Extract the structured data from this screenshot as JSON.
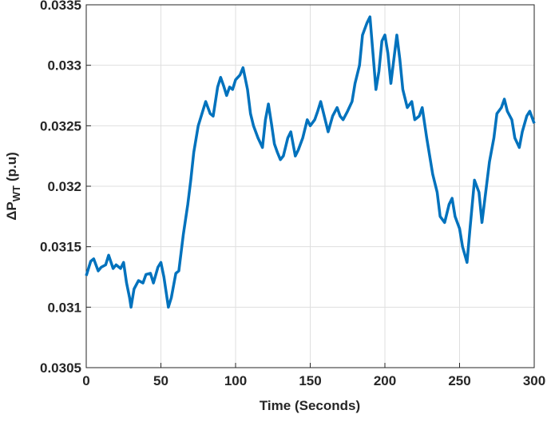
{
  "chart_data": {
    "type": "line",
    "xlabel": "Time (Seconds)",
    "ylabel": "ΔP",
    "ylabel_sub": "WT",
    "ylabel_unit": "(p.u)",
    "xlim": [
      0,
      300
    ],
    "xticks": [
      0,
      50,
      100,
      150,
      200,
      250,
      300
    ],
    "ylim": [
      0.0305,
      0.0335
    ],
    "yticks": [
      0.0305,
      0.031,
      0.0315,
      0.032,
      0.0325,
      0.033,
      0.0335
    ],
    "grid": true,
    "series": [
      {
        "color": "#0072BD",
        "x": [
          0,
          3,
          5,
          8,
          10,
          13,
          15,
          18,
          20,
          23,
          25,
          27,
          29,
          30,
          32,
          35,
          38,
          40,
          43,
          45,
          48,
          50,
          52,
          55,
          57,
          60,
          62,
          65,
          68,
          70,
          72,
          75,
          78,
          80,
          83,
          85,
          88,
          90,
          92,
          94,
          96,
          98,
          100,
          103,
          105,
          108,
          110,
          112,
          115,
          118,
          120,
          122,
          124,
          126,
          128,
          130,
          132,
          135,
          137,
          140,
          142,
          145,
          148,
          150,
          153,
          155,
          157,
          160,
          162,
          165,
          168,
          170,
          172,
          175,
          178,
          180,
          183,
          185,
          188,
          190,
          192,
          194,
          196,
          198,
          200,
          202,
          204,
          206,
          208,
          210,
          212,
          215,
          218,
          220,
          223,
          225,
          228,
          230,
          232,
          235,
          237,
          240,
          243,
          245,
          247,
          250,
          252,
          255,
          257,
          260,
          263,
          265,
          268,
          270,
          273,
          275,
          278,
          280,
          282,
          285,
          287,
          290,
          292,
          295,
          297,
          300
        ],
        "values": [
          0.03126,
          0.03138,
          0.0314,
          0.0313,
          0.03133,
          0.03135,
          0.03143,
          0.03132,
          0.03135,
          0.03132,
          0.03137,
          0.0312,
          0.03108,
          0.031,
          0.03115,
          0.03122,
          0.0312,
          0.03127,
          0.03128,
          0.0312,
          0.03133,
          0.03137,
          0.03125,
          0.031,
          0.03108,
          0.03128,
          0.0313,
          0.0316,
          0.03185,
          0.03205,
          0.03228,
          0.0325,
          0.03262,
          0.0327,
          0.0326,
          0.03258,
          0.03282,
          0.0329,
          0.03283,
          0.03275,
          0.03282,
          0.0328,
          0.03288,
          0.03292,
          0.03298,
          0.0328,
          0.0326,
          0.0325,
          0.0324,
          0.03232,
          0.03255,
          0.03268,
          0.03252,
          0.03235,
          0.03228,
          0.03222,
          0.03225,
          0.0324,
          0.03245,
          0.03225,
          0.0323,
          0.0324,
          0.03255,
          0.0325,
          0.03255,
          0.03262,
          0.0327,
          0.03255,
          0.03245,
          0.03258,
          0.03265,
          0.03258,
          0.03255,
          0.03262,
          0.0327,
          0.03285,
          0.033,
          0.03325,
          0.03335,
          0.0334,
          0.0331,
          0.0328,
          0.03295,
          0.0332,
          0.03325,
          0.0331,
          0.03285,
          0.03305,
          0.03325,
          0.03305,
          0.0328,
          0.03265,
          0.0327,
          0.03255,
          0.03258,
          0.03265,
          0.0324,
          0.03225,
          0.0321,
          0.03195,
          0.03175,
          0.0317,
          0.03185,
          0.0319,
          0.03175,
          0.03165,
          0.0315,
          0.03137,
          0.03165,
          0.03205,
          0.03195,
          0.0317,
          0.032,
          0.0322,
          0.0324,
          0.0326,
          0.03265,
          0.03272,
          0.03262,
          0.03255,
          0.0324,
          0.03232,
          0.03245,
          0.03258,
          0.03262,
          0.03252
        ]
      }
    ]
  }
}
